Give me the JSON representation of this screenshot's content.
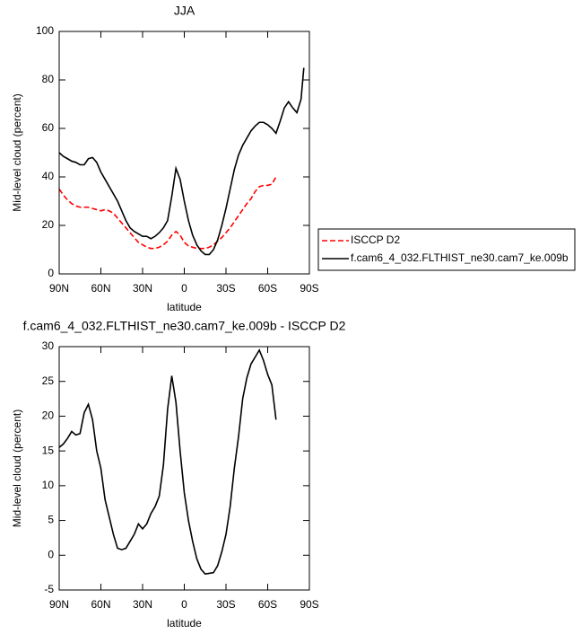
{
  "chart_data": [
    {
      "type": "line",
      "title": "JJA",
      "xlabel": "latitude",
      "ylabel": "Mid-level cloud (percent)",
      "x": [
        90,
        87,
        84,
        81,
        78,
        75,
        72,
        69,
        66,
        63,
        60,
        57,
        54,
        51,
        48,
        45,
        42,
        39,
        36,
        33,
        30,
        27,
        24,
        21,
        18,
        15,
        12,
        9,
        6,
        3,
        0,
        -3,
        -6,
        -9,
        -12,
        -15,
        -18,
        -21,
        -24,
        -27,
        -30,
        -33,
        -36,
        -39,
        -42,
        -45,
        -48,
        -51,
        -54,
        -57,
        -60,
        -63,
        -66,
        -69,
        -72,
        -75,
        -78,
        -81,
        -84,
        -86
      ],
      "xlim": [
        90,
        -90
      ],
      "xticks": [
        {
          "value": 90,
          "label": "90N"
        },
        {
          "value": 60,
          "label": "60N"
        },
        {
          "value": 30,
          "label": "30N"
        },
        0,
        {
          "value": -30,
          "label": "30S"
        },
        {
          "value": -60,
          "label": "60S"
        },
        {
          "value": -90,
          "label": "90S"
        }
      ],
      "ylim": [
        0,
        100
      ],
      "yticks": [
        0,
        20,
        40,
        60,
        80,
        100
      ],
      "legend": "right",
      "series": [
        {
          "name": "ISCCP D2",
          "color": "#ff0000",
          "dash": true,
          "values": [
            35,
            32.5,
            30.5,
            29,
            28,
            27.5,
            27.5,
            27.5,
            27,
            26.5,
            26,
            26.5,
            26,
            25,
            23,
            21,
            19,
            17,
            15,
            13,
            12,
            11,
            10.5,
            10.5,
            11,
            12,
            13.5,
            16,
            17.5,
            16,
            13,
            11.5,
            11,
            10.5,
            10.5,
            10.5,
            11,
            12,
            13.5,
            15,
            17,
            19,
            21.5,
            24,
            26.5,
            29,
            31,
            34,
            36,
            36.5,
            36.5,
            37,
            40,
            null,
            null,
            null,
            null,
            null,
            null,
            null
          ]
        },
        {
          "name": "f.cam6_4_032.FLTHIST_ne30.cam7_ke.009b",
          "color": "#000000",
          "dash": false,
          "values": [
            50,
            48.5,
            47.5,
            46.5,
            46,
            45,
            45,
            47.5,
            48,
            46,
            42,
            39,
            36,
            33,
            30,
            26,
            22,
            19,
            17.5,
            16.5,
            15.5,
            15.5,
            14.5,
            15.5,
            17,
            19,
            22,
            32,
            43.5,
            39,
            30,
            22,
            16,
            12,
            9.5,
            8,
            8,
            10,
            14,
            20,
            27,
            35,
            43,
            49,
            53,
            56,
            59,
            61,
            62.5,
            62.5,
            61.5,
            60,
            58,
            63,
            68.5,
            71,
            68.5,
            66.5,
            72,
            85
          ]
        }
      ]
    },
    {
      "type": "line",
      "title": "f.cam6_4_032.FLTHIST_ne30.cam7_ke.009b - ISCCP D2",
      "xlabel": "latitude",
      "ylabel": "Mid-level cloud (percent)",
      "x": [
        90,
        87,
        84,
        81,
        78,
        75,
        72,
        69,
        66,
        63,
        60,
        57,
        54,
        51,
        48,
        45,
        42,
        39,
        36,
        33,
        30,
        27,
        24,
        21,
        18,
        15,
        12,
        9,
        6,
        3,
        0,
        -3,
        -6,
        -9,
        -12,
        -15,
        -18,
        -21,
        -24,
        -27,
        -30,
        -33,
        -36,
        -39,
        -42,
        -45,
        -48,
        -51,
        -54,
        -57,
        -60,
        -63,
        -66
      ],
      "xlim": [
        90,
        -90
      ],
      "xticks": [
        {
          "value": 90,
          "label": "90N"
        },
        {
          "value": 60,
          "label": "60N"
        },
        {
          "value": 30,
          "label": "30N"
        },
        0,
        {
          "value": -30,
          "label": "30S"
        },
        {
          "value": -60,
          "label": "60S"
        },
        {
          "value": -90,
          "label": "90S"
        }
      ],
      "ylim": [
        -5,
        30
      ],
      "yticks": [
        -5,
        0,
        5,
        10,
        15,
        20,
        25,
        30
      ],
      "legend": false,
      "series": [
        {
          "color": "#000000",
          "dash": false,
          "values": [
            15.5,
            16,
            16.8,
            17.8,
            17.3,
            17.5,
            20.5,
            21.7,
            19.5,
            15,
            12.5,
            8,
            5.5,
            3,
            1,
            0.8,
            1,
            2,
            3,
            4.5,
            3.8,
            4.5,
            6,
            7,
            8.5,
            13,
            21,
            25.8,
            22,
            15,
            9,
            5,
            2,
            -0.5,
            -2,
            -2.7,
            -2.6,
            -2.5,
            -1.5,
            0.5,
            3,
            7,
            12.5,
            17,
            22.5,
            25.5,
            27.5,
            28.5,
            29.5,
            28,
            26,
            24.5,
            19.5
          ]
        }
      ]
    }
  ]
}
